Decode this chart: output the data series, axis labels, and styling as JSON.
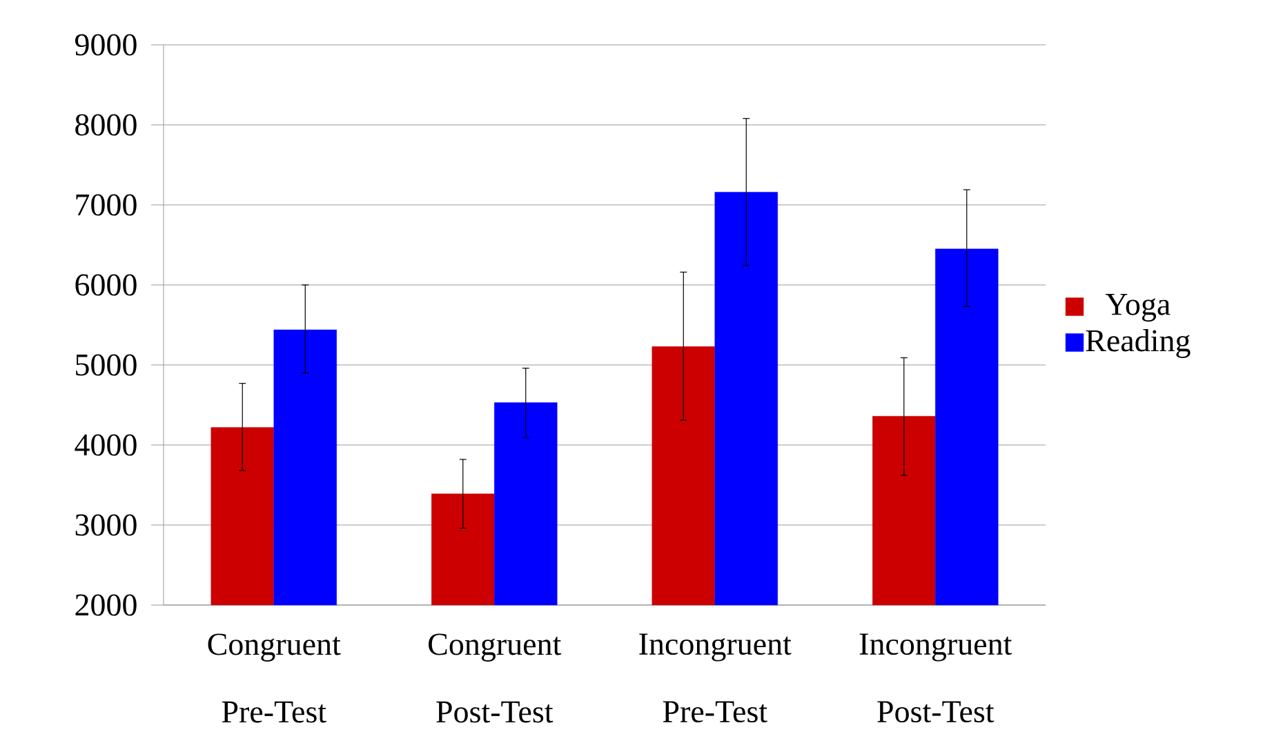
{
  "chart_data": {
    "type": "bar",
    "categories": [
      "Congruent Pre-Test",
      "Congruent Post-Test",
      "Incongruent Pre-Test",
      "Incongruent Post-Test"
    ],
    "series": [
      {
        "name": "Yoga",
        "color": "#cc0000",
        "values": [
          4220,
          3390,
          5230,
          4360
        ],
        "errors": [
          [
            3680,
            4770
          ],
          [
            2960,
            3820
          ],
          [
            4310,
            6160
          ],
          [
            3620,
            5090
          ]
        ]
      },
      {
        "name": "Reading",
        "color": "#0000ff",
        "values": [
          5440,
          4530,
          7160,
          6450
        ],
        "errors": [
          [
            4900,
            6000
          ],
          [
            4090,
            4960
          ],
          [
            6240,
            8080
          ],
          [
            5730,
            7190
          ]
        ]
      }
    ],
    "ylim": [
      2000,
      9000
    ],
    "yticks": [
      2000,
      3000,
      4000,
      5000,
      6000,
      7000,
      8000,
      9000
    ],
    "grid": "y",
    "legend": "right"
  }
}
